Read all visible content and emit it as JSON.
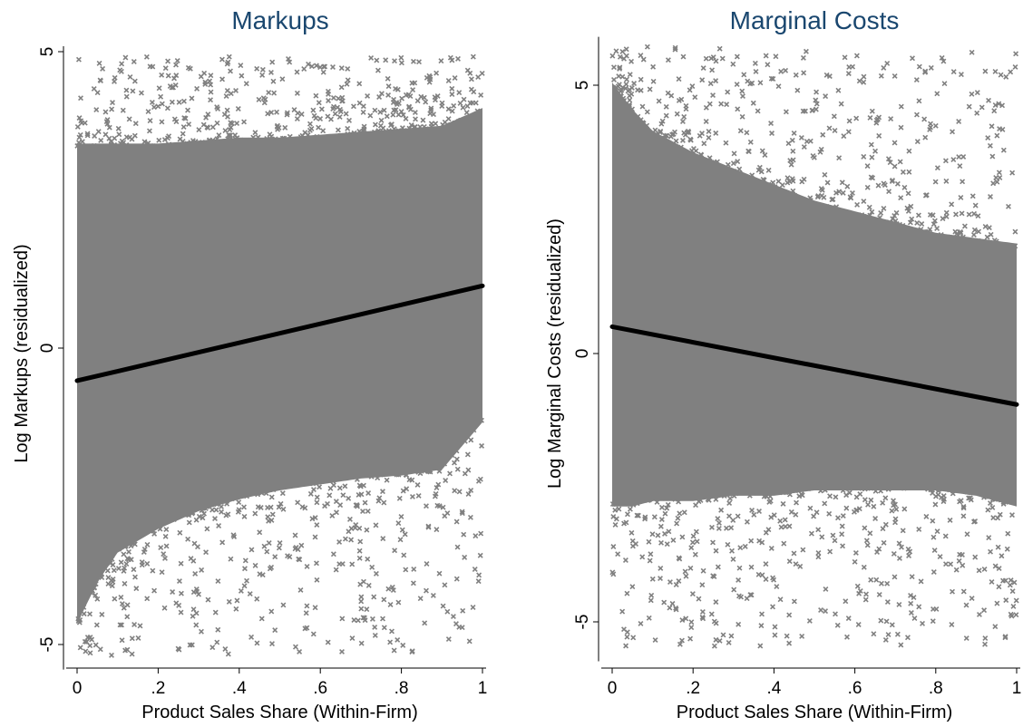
{
  "chart_data": [
    {
      "type": "scatter",
      "title": "Markups",
      "xlabel": "Product Sales Share (Within-Firm)",
      "ylabel": "Log Markups (residualized)",
      "xlim": [
        0,
        1
      ],
      "ylim": [
        -5.3,
        5.0
      ],
      "xticks": [
        0,
        0.2,
        0.4,
        0.6,
        0.8,
        1
      ],
      "xtick_labels": [
        "0",
        ".2",
        ".4",
        ".6",
        ".8",
        "1"
      ],
      "yticks": [
        -5,
        0,
        5
      ],
      "ytick_labels": [
        "-5",
        "0",
        "5"
      ],
      "grid": false,
      "series": [
        {
          "kind": "scatter",
          "marker": "x",
          "color": "#808080",
          "envelope": {
            "x": [
              0,
              0.05,
              0.1,
              0.2,
              0.3,
              0.4,
              0.5,
              0.6,
              0.7,
              0.8,
              0.9,
              1.0
            ],
            "upper": [
              3.9,
              3.9,
              3.9,
              3.9,
              3.95,
              4.0,
              4.0,
              4.05,
              4.1,
              4.15,
              4.2,
              4.5
            ],
            "lower": [
              -5.1,
              -4.4,
              -3.9,
              -3.5,
              -3.2,
              -3.0,
              -2.85,
              -2.75,
              -2.65,
              -2.6,
              -2.5,
              -1.7
            ]
          }
        },
        {
          "kind": "line",
          "color": "#000000",
          "x": [
            0,
            1
          ],
          "y": [
            -0.55,
            1.05
          ]
        }
      ]
    },
    {
      "type": "scatter",
      "title": "Marginal Costs",
      "xlabel": "Product Sales Share (Within-Firm)",
      "ylabel": "Log Marginal Costs (residualized)",
      "xlim": [
        0,
        1
      ],
      "ylim": [
        -5.6,
        5.8
      ],
      "xticks": [
        0,
        0.2,
        0.4,
        0.6,
        0.8,
        1
      ],
      "xtick_labels": [
        "0",
        ".2",
        ".4",
        ".6",
        ".8",
        "1"
      ],
      "yticks": [
        -5,
        0,
        5
      ],
      "ytick_labels": [
        "-5",
        "0",
        "5"
      ],
      "grid": false,
      "series": [
        {
          "kind": "scatter",
          "marker": "x",
          "color": "#808080",
          "envelope": {
            "x": [
              0,
              0.05,
              0.1,
              0.2,
              0.3,
              0.4,
              0.5,
              0.6,
              0.7,
              0.8,
              0.9,
              1.0
            ],
            "upper": [
              5.5,
              5.0,
              4.6,
              4.2,
              3.9,
              3.6,
              3.3,
              3.1,
              2.9,
              2.7,
              2.6,
              2.5
            ],
            "lower": [
              -3.3,
              -3.3,
              -3.2,
              -3.2,
              -3.1,
              -3.1,
              -3.0,
              -3.0,
              -3.0,
              -3.0,
              -3.1,
              -3.3
            ]
          }
        },
        {
          "kind": "line",
          "color": "#000000",
          "x": [
            0,
            1
          ],
          "y": [
            0.5,
            -0.95
          ]
        }
      ]
    }
  ]
}
